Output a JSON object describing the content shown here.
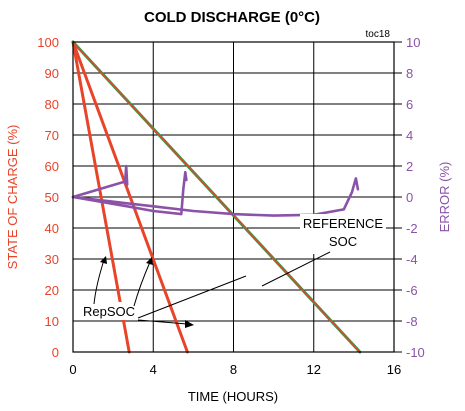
{
  "chart_data": {
    "type": "line",
    "title": "COLD DISCHARGE (0°C)",
    "tag": "toc18",
    "xlabel": "TIME (HOURS)",
    "ylabel_left": "STATE OF CHARGE (%)",
    "ylabel_right": "ERROR (%)",
    "xlim": [
      0,
      16
    ],
    "ylim_left": [
      0,
      100
    ],
    "ylim_right": [
      -10,
      10
    ],
    "x_ticks": [
      "0",
      "4",
      "8",
      "12",
      "16"
    ],
    "y_ticks_left": [
      "0",
      "10",
      "20",
      "30",
      "40",
      "50",
      "60",
      "70",
      "80",
      "90",
      "100"
    ],
    "y_ticks_right": [
      "-10",
      "-8",
      "-6",
      "-4",
      "-2",
      "0",
      "2",
      "4",
      "6",
      "8",
      "10"
    ],
    "grid": true,
    "annotations": [
      "REFERENCE",
      "SOC",
      "RepSOC"
    ],
    "colors": {
      "soc": "#e8442a",
      "reference": "#2e9a48",
      "error": "#8b53a8",
      "left_axis_label": "#e8442a",
      "right_axis_label": "#8b53a8"
    },
    "series": [
      {
        "axis": "left",
        "color": "#e8442a",
        "x": [
          0,
          2.8
        ],
        "y": [
          100,
          0
        ]
      },
      {
        "axis": "left",
        "color": "#e8442a",
        "x": [
          0,
          5.7
        ],
        "y": [
          100,
          0
        ]
      },
      {
        "axis": "left",
        "color": "#2e9a48",
        "x": [
          0,
          14.3
        ],
        "y": [
          100,
          0
        ]
      },
      {
        "axis": "left",
        "color": "#e8442a",
        "x": [
          0,
          14.3
        ],
        "y": [
          100,
          0
        ]
      },
      {
        "axis": "right",
        "color": "#8b53a8",
        "x": [
          0,
          2.6,
          2.65,
          2.7
        ],
        "y": [
          0,
          1.0,
          2.0,
          0.8
        ]
      },
      {
        "axis": "right",
        "color": "#8b53a8",
        "x": [
          0,
          2.7,
          4.0,
          5.4,
          5.5,
          5.6,
          5.65
        ],
        "y": [
          0,
          -0.6,
          -0.9,
          -1.1,
          0.5,
          1.6,
          1.1
        ]
      },
      {
        "axis": "right",
        "color": "#8b53a8",
        "x": [
          0,
          2.0,
          4.0,
          6.0,
          8.0,
          10.0,
          12.0,
          13.5,
          13.9,
          14.1,
          14.2
        ],
        "y": [
          0,
          -0.3,
          -0.6,
          -0.9,
          -1.1,
          -1.2,
          -1.15,
          -0.8,
          0.3,
          1.2,
          0.5
        ]
      }
    ]
  }
}
